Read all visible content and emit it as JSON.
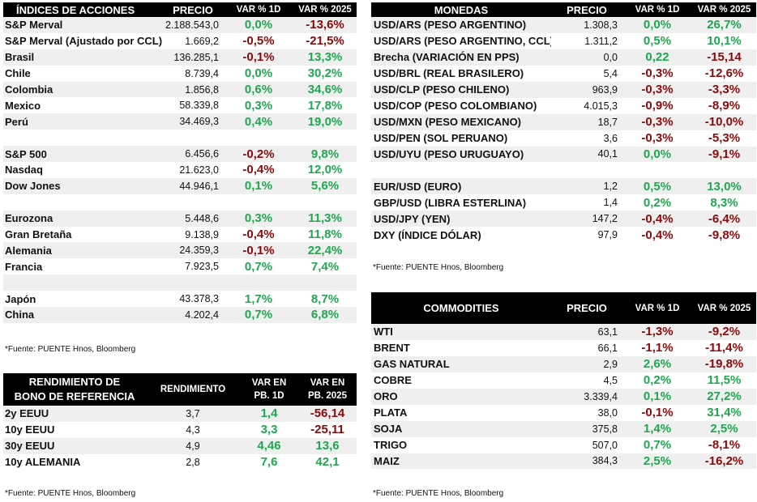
{
  "indices": {
    "headers": {
      "name": "ÍNDICES DE ACCIONES",
      "price": "PRECIO",
      "d1": "VAR % 1D",
      "y": "VAR % 2025"
    },
    "rows": [
      {
        "name": "S&P Merval",
        "price": "2.188.543,0",
        "d1": "0,0%",
        "y": "-13,6%",
        "d1s": "pos",
        "ys": "neg"
      },
      {
        "name": "S&P Merval (Ajustado por CCL)",
        "price": "1.669,2",
        "d1": "-0,5%",
        "y": "-21,5%",
        "d1s": "neg",
        "ys": "neg"
      },
      {
        "name": "Brasil",
        "price": "136.285,1",
        "d1": "-0,1%",
        "y": "13,3%",
        "d1s": "neg",
        "ys": "pos"
      },
      {
        "name": "Chile",
        "price": "8.739,4",
        "d1": "0,0%",
        "y": "30,2%",
        "d1s": "pos",
        "ys": "pos"
      },
      {
        "name": "Colombia",
        "price": "1.856,8",
        "d1": "0,6%",
        "y": "34,6%",
        "d1s": "pos",
        "ys": "pos"
      },
      {
        "name": "Mexico",
        "price": "58.339,8",
        "d1": "0,3%",
        "y": "17,8%",
        "d1s": "pos",
        "ys": "pos"
      },
      {
        "name": "Perú",
        "price": "34.469,3",
        "d1": "0,4%",
        "y": "19,0%",
        "d1s": "pos",
        "ys": "pos"
      },
      {
        "blank": true
      },
      {
        "name": "S&P 500",
        "price": "6.456,6",
        "d1": "-0,2%",
        "y": "9,8%",
        "d1s": "neg",
        "ys": "pos"
      },
      {
        "name": "Nasdaq",
        "price": "21.623,0",
        "d1": "-0,4%",
        "y": "12,0%",
        "d1s": "neg",
        "ys": "pos"
      },
      {
        "name": "Dow Jones",
        "price": "44.946,1",
        "d1": "0,1%",
        "y": "5,6%",
        "d1s": "pos",
        "ys": "pos"
      },
      {
        "blank": true
      },
      {
        "name": "Eurozona",
        "price": "5.448,6",
        "d1": "0,3%",
        "y": "11,3%",
        "d1s": "pos",
        "ys": "pos"
      },
      {
        "name": "Gran Bretaña",
        "price": "9.138,9",
        "d1": "-0,4%",
        "y": "11,8%",
        "d1s": "neg",
        "ys": "pos"
      },
      {
        "name": "Alemania",
        "price": "24.359,3",
        "d1": "-0,1%",
        "y": "22,4%",
        "d1s": "neg",
        "ys": "pos"
      },
      {
        "name": "Francia",
        "price": "7.923,5",
        "d1": "0,7%",
        "y": "7,4%",
        "d1s": "pos",
        "ys": "pos"
      },
      {
        "blank": true
      },
      {
        "name": "Japón",
        "price": "43.378,3",
        "d1": "1,7%",
        "y": "8,7%",
        "d1s": "pos",
        "ys": "pos"
      },
      {
        "name": "China",
        "price": "4.202,4",
        "d1": "0,7%",
        "y": "6,8%",
        "d1s": "pos",
        "ys": "pos"
      }
    ],
    "note": "*Fuente: PUENTE Hnos, Bloomberg"
  },
  "bonos": {
    "headers": {
      "name_l1": "RENDIMIENTO DE",
      "name_l2": "BONO DE REFERENCIA",
      "price": "RENDIMIENTO",
      "d1_l1": "VAR EN",
      "d1_l2": "PB. 1D",
      "y_l1": "VAR EN",
      "y_l2": "PB. 2025"
    },
    "rows": [
      {
        "name": "2y EEUU",
        "price": "3,7",
        "d1": "1,4",
        "y": "-56,14",
        "d1s": "pos",
        "ys": "neg"
      },
      {
        "name": "10y EEUU",
        "price": "4,3",
        "d1": "3,3",
        "y": "-25,11",
        "d1s": "pos",
        "ys": "neg"
      },
      {
        "name": "30y EEUU",
        "price": "4,9",
        "d1": "4,46",
        "y": "13,6",
        "d1s": "pos",
        "ys": "pos"
      },
      {
        "name": "10y ALEMANIA",
        "price": "2,8",
        "d1": "7,6",
        "y": "42,1",
        "d1s": "pos",
        "ys": "pos"
      }
    ],
    "note": "*Fuente: PUENTE Hnos, Bloomberg"
  },
  "monedas": {
    "headers": {
      "name": "MONEDAS",
      "price": "PRECIO",
      "d1": "VAR % 1D",
      "y": "VAR % 2025"
    },
    "rows": [
      {
        "name": "USD/ARS (PESO ARGENTINO)",
        "price": "1.308,3",
        "d1": "0,0%",
        "y": "26,7%",
        "d1s": "pos",
        "ys": "pos"
      },
      {
        "name": "USD/ARS (PESO ARGENTINO, CCL)",
        "price": "1.311,2",
        "d1": "0,5%",
        "y": "10,1%",
        "d1s": "pos",
        "ys": "pos"
      },
      {
        "name": "Brecha (VARIACIÓN EN PPS)",
        "price": "0,0",
        "d1": "0,22",
        "y": "-15,14",
        "d1s": "pos",
        "ys": "neg"
      },
      {
        "name": "USD/BRL (REAL BRASILERO)",
        "price": "5,4",
        "d1": "-0,3%",
        "y": "-12,6%",
        "d1s": "neg",
        "ys": "neg"
      },
      {
        "name": "USD/CLP (PESO CHILENO)",
        "price": "963,9",
        "d1": "-0,3%",
        "y": "-3,3%",
        "d1s": "neg",
        "ys": "neg"
      },
      {
        "name": "USD/COP (PESO COLOMBIANO)",
        "price": "4.015,3",
        "d1": "-0,9%",
        "y": "-8,9%",
        "d1s": "neg",
        "ys": "neg"
      },
      {
        "name": "USD/MXN (PESO MEXICANO)",
        "price": "18,7",
        "d1": "-0,3%",
        "y": "-10,0%",
        "d1s": "neg",
        "ys": "neg"
      },
      {
        "name": "USD/PEN (SOL PERUANO)",
        "price": "3,6",
        "d1": "-0,3%",
        "y": "-5,3%",
        "d1s": "neg",
        "ys": "neg"
      },
      {
        "name": "USD/UYU (PESO URUGUAYO)",
        "price": "40,1",
        "d1": "0,0%",
        "y": "-9,1%",
        "d1s": "pos",
        "ys": "neg"
      },
      {
        "blank": true
      },
      {
        "name": "EUR/USD (EURO)",
        "price": "1,2",
        "d1": "0,5%",
        "y": "13,0%",
        "d1s": "pos",
        "ys": "pos"
      },
      {
        "name": "GBP/USD (LIBRA ESTERLINA)",
        "price": "1,4",
        "d1": "0,2%",
        "y": "8,3%",
        "d1s": "pos",
        "ys": "pos"
      },
      {
        "name": "USD/JPY (YEN)",
        "price": "147,2",
        "d1": "-0,4%",
        "y": "-6,4%",
        "d1s": "neg",
        "ys": "neg"
      },
      {
        "name": "DXY (ÍNDICE DÓLAR)",
        "price": "97,9",
        "d1": "-0,4%",
        "y": "-9,8%",
        "d1s": "neg",
        "ys": "neg"
      }
    ],
    "note": "*Fuente: PUENTE Hnos, Bloomberg"
  },
  "commodities": {
    "headers": {
      "name": "COMMODITIES",
      "price": "PRECIO",
      "d1": "VAR % 1D",
      "y": "VAR % 2025"
    },
    "rows": [
      {
        "name": "WTI",
        "price": "63,1",
        "d1": "-1,3%",
        "y": "-9,2%",
        "d1s": "neg",
        "ys": "neg"
      },
      {
        "name": "BRENT",
        "price": "66,1",
        "d1": "-1,1%",
        "y": "-11,4%",
        "d1s": "neg",
        "ys": "neg"
      },
      {
        "name": "GAS NATURAL",
        "price": "2,9",
        "d1": "2,6%",
        "y": "-19,8%",
        "d1s": "pos",
        "ys": "neg"
      },
      {
        "name": "COBRE",
        "price": "4,5",
        "d1": "0,2%",
        "y": "11,5%",
        "d1s": "pos",
        "ys": "pos"
      },
      {
        "name": "ORO",
        "price": "3.339,4",
        "d1": "0,1%",
        "y": "27,2%",
        "d1s": "pos",
        "ys": "pos"
      },
      {
        "name": "PLATA",
        "price": "38,0",
        "d1": "-0,1%",
        "y": "31,4%",
        "d1s": "neg",
        "ys": "pos"
      },
      {
        "name": "SOJA",
        "price": "375,8",
        "d1": "1,4%",
        "y": "2,5%",
        "d1s": "pos",
        "ys": "pos"
      },
      {
        "name": "TRIGO",
        "price": "507,0",
        "d1": "0,7%",
        "y": "-8,1%",
        "d1s": "pos",
        "ys": "neg"
      },
      {
        "name": "MAIZ",
        "price": "384,3",
        "d1": "2,5%",
        "y": "-16,2%",
        "d1s": "pos",
        "ys": "neg"
      }
    ],
    "note": "*Fuente: PUENTE Hnos, Bloomberg"
  },
  "colors": {
    "positive": "#1fa84f",
    "negative": "#8b0a0a",
    "header_bg": "#000000",
    "row_alt": "#efefef"
  }
}
